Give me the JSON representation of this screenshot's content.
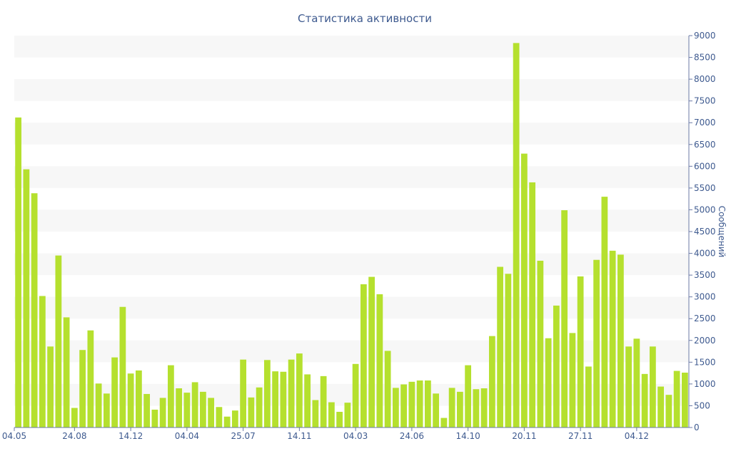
{
  "chart_data": {
    "type": "bar",
    "title": "Статистика активности",
    "ylabel": "Сообщений",
    "ylim": [
      0,
      9000
    ],
    "y_ticks": [
      0,
      500,
      1000,
      1500,
      2000,
      2500,
      3000,
      3500,
      4000,
      4500,
      5000,
      5500,
      6000,
      6500,
      7000,
      7500,
      8000,
      8500,
      9000
    ],
    "y_axis_side": "right",
    "grid": "alternating horizontal bands",
    "bar_color": "#b5e02e",
    "band_color": "#f7f7f7",
    "text_color": "#3e5a8f",
    "x_tick_labels": [
      {
        "index": 0,
        "label": "04.05"
      },
      {
        "index": 7,
        "label": "24.08"
      },
      {
        "index": 14,
        "label": "14.12"
      },
      {
        "index": 21,
        "label": "04.04"
      },
      {
        "index": 28,
        "label": "25.07"
      },
      {
        "index": 35,
        "label": "14.11"
      },
      {
        "index": 42,
        "label": "04.03"
      },
      {
        "index": 49,
        "label": "24.06"
      },
      {
        "index": 56,
        "label": "14.10"
      },
      {
        "index": 63,
        "label": "20.11"
      },
      {
        "index": 70,
        "label": "27.11"
      },
      {
        "index": 77,
        "label": "04.12"
      }
    ],
    "values": [
      7120,
      5930,
      5380,
      3020,
      1860,
      3950,
      2530,
      450,
      1780,
      2230,
      1010,
      780,
      1610,
      2770,
      1240,
      1310,
      770,
      410,
      680,
      1430,
      900,
      800,
      1040,
      820,
      680,
      470,
      250,
      390,
      1560,
      690,
      920,
      1550,
      1290,
      1280,
      1560,
      1700,
      1220,
      630,
      1180,
      580,
      360,
      570,
      1460,
      3290,
      3460,
      3060,
      1760,
      910,
      990,
      1050,
      1080,
      1080,
      780,
      220,
      910,
      820,
      1430,
      880,
      900,
      2100,
      3690,
      3530,
      8830,
      6290,
      5630,
      3830,
      2050,
      2800,
      4990,
      2170,
      3470,
      1400,
      3850,
      5300,
      4060,
      3970,
      1860,
      2040,
      1230,
      1860,
      940,
      750,
      1300,
      1260
    ]
  }
}
